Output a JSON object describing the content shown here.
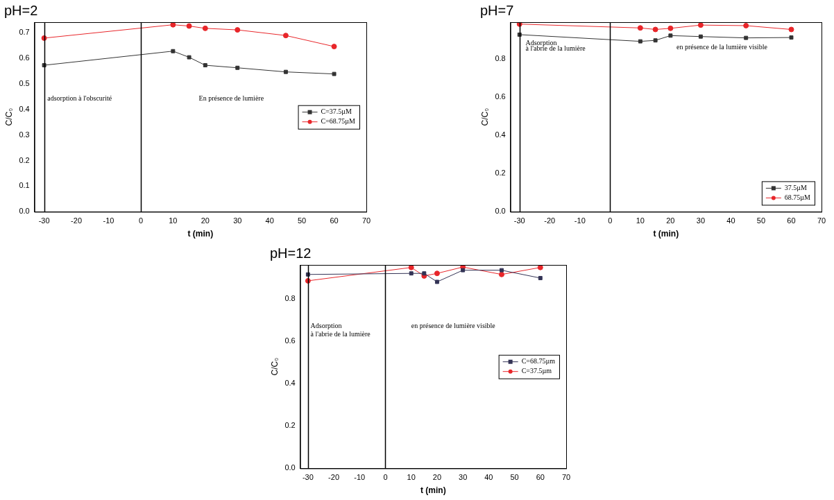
{
  "chart_data": [
    {
      "type": "line",
      "title": "pH=2",
      "x_label": "t (min)",
      "y_label": "C/C₀",
      "x": [
        -30,
        10,
        15,
        20,
        30,
        45,
        60
      ],
      "series": [
        {
          "name": "C=37.5µM",
          "color": "#333333",
          "marker": "square",
          "values": [
            0.572,
            0.627,
            0.603,
            0.572,
            0.562,
            0.546,
            0.538
          ]
        },
        {
          "name": "C=68.75µM",
          "color": "#e8262a",
          "marker": "circle",
          "values": [
            0.678,
            0.73,
            0.725,
            0.716,
            0.71,
            0.688,
            0.645
          ]
        }
      ],
      "xlim": [
        -33,
        70
      ],
      "xticks": [
        -30,
        -20,
        -10,
        0,
        10,
        20,
        30,
        40,
        50,
        60,
        70
      ],
      "ylim": [
        0,
        0.74
      ],
      "yticks": [
        {
          "value": 0,
          "label": "0.0"
        },
        0.1,
        0.2,
        0.3,
        0.4,
        0.5,
        0.6,
        0.7
      ],
      "grid": false,
      "legend": "center right",
      "vlines": [
        -30,
        0
      ],
      "annotations": [
        {
          "text": "adsorption à l'obscurité",
          "x": -29,
          "y": 0.44
        },
        {
          "text": "En présence de lumière",
          "x": 18,
          "y": 0.44
        }
      ]
    },
    {
      "type": "line",
      "title": "pH=7",
      "x_label": "t (min)",
      "y_label": "C/C₀",
      "x": [
        -30,
        10,
        15,
        20,
        30,
        45,
        60
      ],
      "series": [
        {
          "name": "37.5µM",
          "color": "#333333",
          "marker": "square",
          "values": [
            0.925,
            0.89,
            0.895,
            0.92,
            0.915,
            0.908,
            0.91
          ]
        },
        {
          "name": "68.75µM",
          "color": "#e8262a",
          "marker": "circle",
          "values": [
            0.98,
            0.96,
            0.952,
            0.958,
            0.975,
            0.972,
            0.952
          ]
        }
      ],
      "xlim": [
        -33,
        70
      ],
      "xticks": [
        -30,
        -20,
        -10,
        0,
        10,
        20,
        30,
        40,
        50,
        60,
        70
      ],
      "ylim": [
        0,
        0.99
      ],
      "yticks": [
        {
          "value": 0,
          "label": "0.0"
        },
        0.2,
        0.4,
        0.6,
        0.8
      ],
      "grid": false,
      "legend": "lower right",
      "vlines": [
        -30,
        0
      ],
      "annotations": [
        {
          "text": "Adsorption",
          "x": -28,
          "y": 0.88
        },
        {
          "text": "à l'abrie de la lumière",
          "x": -28,
          "y": 0.85
        },
        {
          "text": "en présence de la lumière visible",
          "x": 22,
          "y": 0.86
        }
      ]
    },
    {
      "type": "line",
      "title": "pH=12",
      "x_label": "t (min)",
      "y_label": "C/C₀",
      "x": [
        -30,
        10,
        15,
        20,
        30,
        45,
        60
      ],
      "series": [
        {
          "name": "C=68.75µm",
          "color": "#333355",
          "marker": "square",
          "values": [
            0.915,
            0.92,
            0.92,
            0.88,
            0.935,
            0.935,
            0.898
          ]
        },
        {
          "name": "C=37.5µm",
          "color": "#e8262a",
          "marker": "circle",
          "values": [
            0.885,
            0.948,
            0.908,
            0.92,
            0.95,
            0.915,
            0.948
          ]
        }
      ],
      "xlim": [
        -33,
        70
      ],
      "xticks": [
        -30,
        -20,
        -10,
        0,
        10,
        20,
        30,
        40,
        50,
        60,
        70
      ],
      "ylim": [
        0,
        0.96
      ],
      "yticks": [
        {
          "value": 0,
          "label": "0.0"
        },
        0.2,
        0.4,
        0.6,
        0.8
      ],
      "grid": false,
      "legend": "center right",
      "vlines": [
        -30,
        0
      ],
      "annotations": [
        {
          "text": "Adsorption",
          "x": -29,
          "y": 0.67
        },
        {
          "text": "à l'abrie de la lumière",
          "x": -29,
          "y": 0.63
        },
        {
          "text": "en présence de lumière visible",
          "x": 10,
          "y": 0.67
        }
      ]
    }
  ]
}
